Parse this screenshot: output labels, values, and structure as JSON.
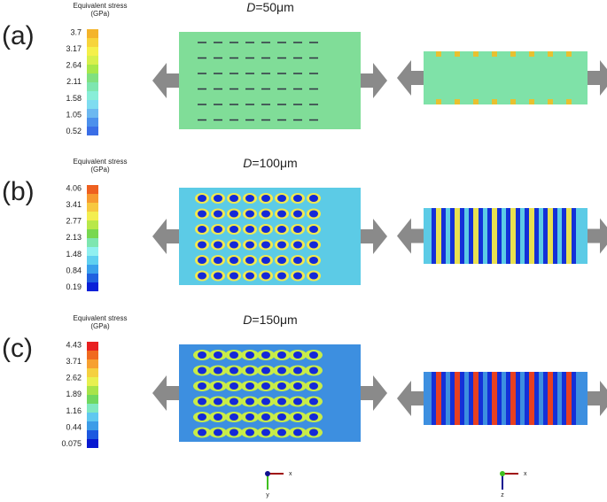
{
  "panels": [
    {
      "label": "(a)",
      "legend": {
        "title": "Equivalent stress",
        "unit": "(GPa)",
        "ticks": [
          "3.7",
          "3.17",
          "2.64",
          "2.11",
          "1.58",
          "1.05",
          "0.52"
        ]
      },
      "diameter": {
        "symbol": "D",
        "value": "=50μm"
      }
    },
    {
      "label": "(b)",
      "legend": {
        "title": "Equivalent stress",
        "unit": "(GPa)",
        "ticks": [
          "4.06",
          "3.41",
          "2.77",
          "2.13",
          "1.48",
          "0.84",
          "0.19"
        ]
      },
      "diameter": {
        "symbol": "D",
        "value": "=100μm"
      }
    },
    {
      "label": "(c)",
      "legend": {
        "title": "Equivalent stress",
        "unit": "(GPa)",
        "ticks": [
          "4.43",
          "3.71",
          "2.62",
          "1.89",
          "1.16",
          "0.44",
          "0.075"
        ]
      },
      "diameter": {
        "symbol": "D",
        "value": "=150μm"
      }
    }
  ],
  "axes": [
    {
      "x": "x",
      "y": "y"
    },
    {
      "x": "x",
      "y": "z"
    }
  ]
}
